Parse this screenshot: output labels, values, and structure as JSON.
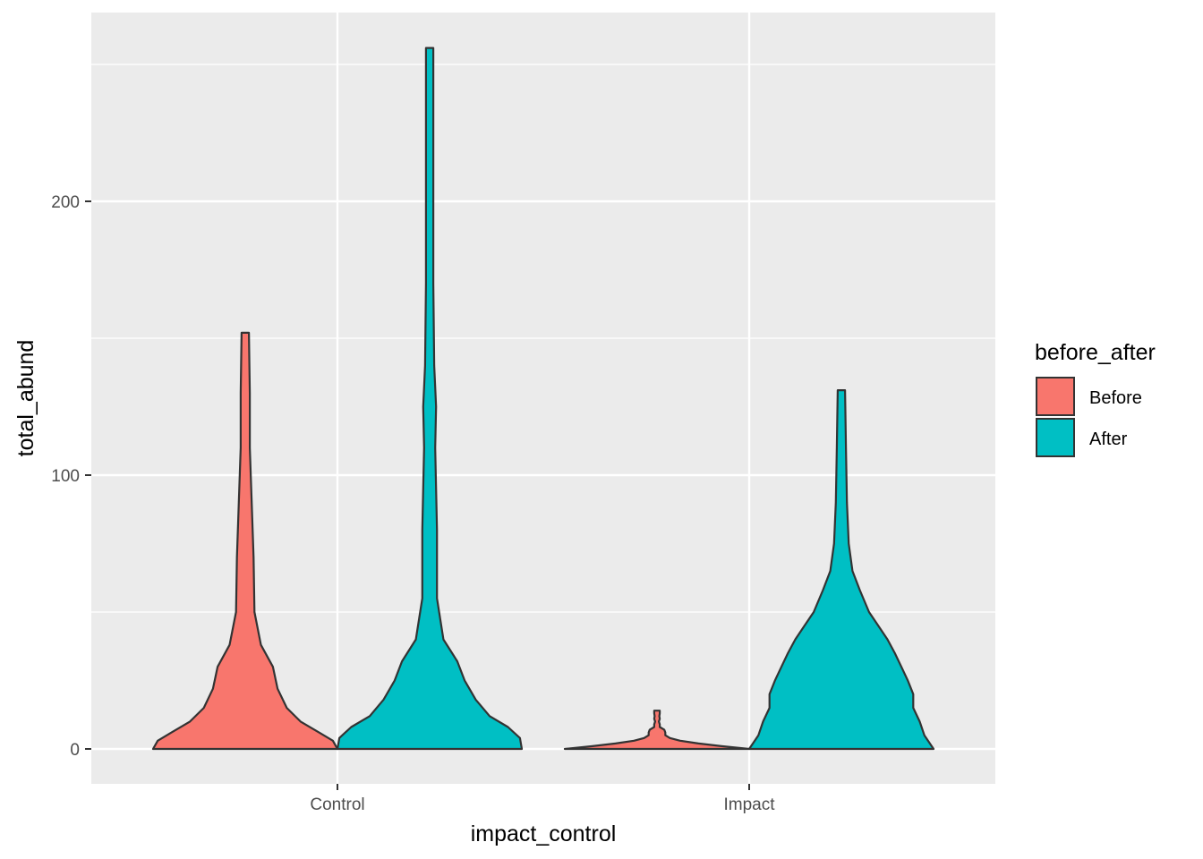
{
  "chart_data": {
    "type": "violin",
    "xlabel": "impact_control",
    "ylabel": "total_abund",
    "categories": [
      "Control",
      "Impact"
    ],
    "ylim": [
      -13,
      258
    ],
    "yticks": [
      0,
      100,
      200
    ],
    "grid": true,
    "legend": {
      "title": "before_after",
      "position": "right",
      "entries": [
        {
          "label": "Before",
          "color": "#F8766D"
        },
        {
          "label": "After",
          "color": "#00BFC4"
        }
      ]
    },
    "series": [
      {
        "name": "Before",
        "color": "#F8766D",
        "violins": [
          {
            "category": "Control",
            "min": 0,
            "max": 152,
            "profile": [
              [
                0,
                1.0
              ],
              [
                3,
                0.95
              ],
              [
                6,
                0.8
              ],
              [
                10,
                0.6
              ],
              [
                15,
                0.45
              ],
              [
                22,
                0.35
              ],
              [
                30,
                0.3
              ],
              [
                38,
                0.17
              ],
              [
                50,
                0.1
              ],
              [
                70,
                0.09
              ],
              [
                90,
                0.07
              ],
              [
                110,
                0.05
              ],
              [
                130,
                0.05
              ],
              [
                152,
                0.04
              ]
            ]
          },
          {
            "category": "Impact",
            "min": 0,
            "max": 14,
            "profile": [
              [
                0,
                1.0
              ],
              [
                1,
                0.7
              ],
              [
                2,
                0.45
              ],
              [
                3,
                0.25
              ],
              [
                4,
                0.14
              ],
              [
                5,
                0.09
              ],
              [
                6,
                0.09
              ],
              [
                7,
                0.08
              ],
              [
                8,
                0.03
              ],
              [
                9,
                0.03
              ],
              [
                10,
                0.02
              ],
              [
                11,
                0.03
              ],
              [
                12,
                0.025
              ],
              [
                13,
                0.03
              ],
              [
                14,
                0.03
              ]
            ]
          }
        ]
      },
      {
        "name": "After",
        "color": "#00BFC4",
        "violins": [
          {
            "category": "Control",
            "min": 0,
            "max": 256,
            "profile": [
              [
                0,
                1.0
              ],
              [
                4,
                0.98
              ],
              [
                8,
                0.85
              ],
              [
                12,
                0.65
              ],
              [
                18,
                0.5
              ],
              [
                25,
                0.38
              ],
              [
                32,
                0.3
              ],
              [
                40,
                0.15
              ],
              [
                55,
                0.08
              ],
              [
                80,
                0.08
              ],
              [
                110,
                0.06
              ],
              [
                125,
                0.07
              ],
              [
                140,
                0.05
              ],
              [
                170,
                0.04
              ],
              [
                210,
                0.04
              ],
              [
                256,
                0.04
              ]
            ]
          },
          {
            "category": "Impact",
            "min": 0,
            "max": 131,
            "profile": [
              [
                0,
                1.0
              ],
              [
                5,
                0.9
              ],
              [
                10,
                0.85
              ],
              [
                15,
                0.78
              ],
              [
                20,
                0.78
              ],
              [
                25,
                0.72
              ],
              [
                30,
                0.65
              ],
              [
                35,
                0.58
              ],
              [
                40,
                0.5
              ],
              [
                45,
                0.4
              ],
              [
                50,
                0.3
              ],
              [
                58,
                0.2
              ],
              [
                65,
                0.12
              ],
              [
                75,
                0.08
              ],
              [
                90,
                0.06
              ],
              [
                110,
                0.05
              ],
              [
                131,
                0.04
              ]
            ]
          }
        ]
      }
    ]
  }
}
